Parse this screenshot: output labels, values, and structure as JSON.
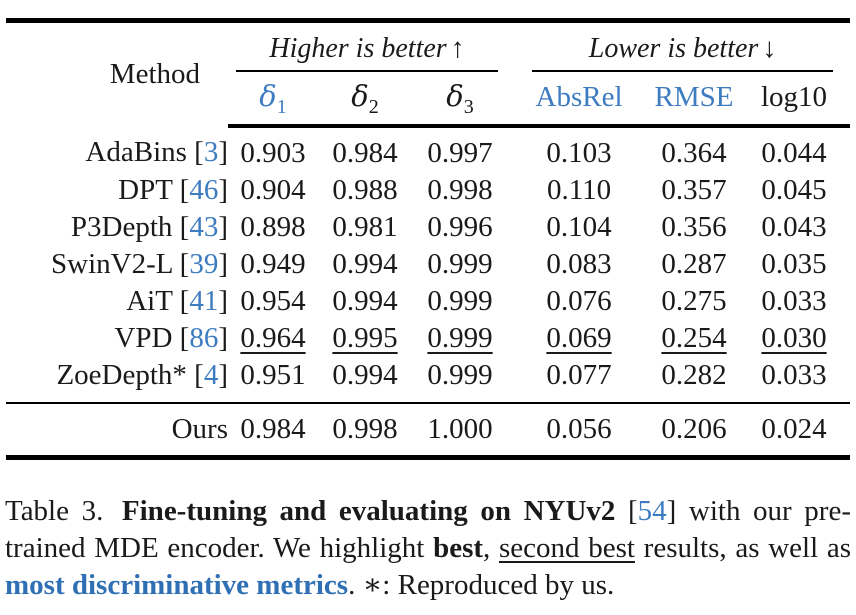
{
  "accent_blue": "#3d7cc0",
  "table": {
    "meta": {
      "bracket_open": "[",
      "bracket_close": "]"
    },
    "header": {
      "method_label": "Method",
      "group_higher": {
        "text": "Higher is better",
        "arrow": "↑"
      },
      "group_lower": {
        "text": "Lower is better",
        "arrow": "↓"
      },
      "metrics": [
        {
          "glyph": "δ",
          "sub": "1",
          "highlight": true
        },
        {
          "glyph": "δ",
          "sub": "2",
          "highlight": false
        },
        {
          "glyph": "δ",
          "sub": "3",
          "highlight": false
        },
        {
          "glyph": "AbsRel",
          "sub": "",
          "highlight": true
        },
        {
          "glyph": "RMSE",
          "sub": "",
          "highlight": true
        },
        {
          "glyph": "log10",
          "sub": "",
          "highlight": false
        }
      ]
    },
    "rows": [
      {
        "method": "AdaBins",
        "cite": "3",
        "values": [
          "0.903",
          "0.984",
          "0.997",
          "0.103",
          "0.364",
          "0.044"
        ],
        "emphasis": "none"
      },
      {
        "method": "DPT",
        "cite": "46",
        "values": [
          "0.904",
          "0.988",
          "0.998",
          "0.110",
          "0.357",
          "0.045"
        ],
        "emphasis": "none"
      },
      {
        "method": "P3Depth",
        "cite": "43",
        "values": [
          "0.898",
          "0.981",
          "0.996",
          "0.104",
          "0.356",
          "0.043"
        ],
        "emphasis": "none"
      },
      {
        "method": "SwinV2-L",
        "cite": "39",
        "values": [
          "0.949",
          "0.994",
          "0.999",
          "0.083",
          "0.287",
          "0.035"
        ],
        "emphasis": "none"
      },
      {
        "method": "AiT",
        "cite": "41",
        "values": [
          "0.954",
          "0.994",
          "0.999",
          "0.076",
          "0.275",
          "0.033"
        ],
        "emphasis": "none"
      },
      {
        "method": "VPD",
        "cite": "86",
        "values": [
          "0.964",
          "0.995",
          "0.999",
          "0.069",
          "0.254",
          "0.030"
        ],
        "emphasis": "second-best-underline"
      },
      {
        "method": "ZoeDepth*",
        "cite": "4",
        "values": [
          "0.951",
          "0.994",
          "0.999",
          "0.077",
          "0.282",
          "0.033"
        ],
        "emphasis": "none"
      }
    ],
    "ours": {
      "method": "Ours",
      "values": [
        "0.984",
        "0.998",
        "1.000",
        "0.056",
        "0.206",
        "0.024"
      ],
      "emphasis": "best-bold"
    }
  },
  "caption": {
    "segments": [
      {
        "text": "Table 3.",
        "style": "normal"
      },
      {
        "text": " Fine-tuning and evaluating on NYUv2",
        "style": "bold"
      },
      {
        "text": " [",
        "style": "normal"
      },
      {
        "text": "54",
        "style": "blue"
      },
      {
        "text": "] with our pre-trained MDE encoder. We highlight ",
        "style": "normal"
      },
      {
        "text": "best",
        "style": "bold"
      },
      {
        "text": ", ",
        "style": "normal"
      },
      {
        "text": "second best",
        "style": "underline"
      },
      {
        "text": " results, as well as ",
        "style": "normal"
      },
      {
        "text": "most discriminative metrics",
        "style": "bold-blue"
      },
      {
        "text": ". ∗: Reproduced by us.",
        "style": "normal"
      }
    ]
  }
}
